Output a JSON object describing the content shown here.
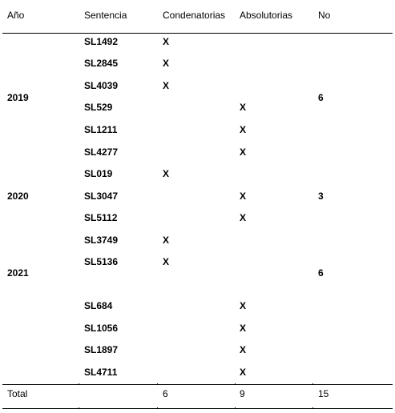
{
  "headers": {
    "year": "Año",
    "sentencia": "Sentencia",
    "condenatorias": "Condenatorias",
    "absolutorias": "Absolutorias",
    "no": "No"
  },
  "rows": [
    {
      "sentencia": "SL1492",
      "condenatoria": "X",
      "absolutoria": ""
    },
    {
      "sentencia": "SL2845",
      "condenatoria": "X",
      "absolutoria": ""
    },
    {
      "sentencia": "SL4039",
      "condenatoria": "X",
      "absolutoria": ""
    },
    {
      "sentencia": "SL529",
      "condenatoria": "",
      "absolutoria": "X"
    },
    {
      "sentencia": "SL1211",
      "condenatoria": "",
      "absolutoria": "X"
    },
    {
      "sentencia": "SL4277",
      "condenatoria": "",
      "absolutoria": "X"
    },
    {
      "sentencia": "SL019",
      "condenatoria": "X",
      "absolutoria": ""
    },
    {
      "sentencia": "SL3047",
      "condenatoria": "",
      "absolutoria": "X"
    },
    {
      "sentencia": "SL5112",
      "condenatoria": "",
      "absolutoria": "X"
    },
    {
      "sentencia": "SL3749",
      "condenatoria": "X",
      "absolutoria": ""
    },
    {
      "sentencia": "SL5136",
      "condenatoria": "X",
      "absolutoria": ""
    },
    {
      "sentencia": "SL684",
      "condenatoria": "",
      "absolutoria": "X"
    },
    {
      "sentencia": "SL1056",
      "condenatoria": "",
      "absolutoria": "X"
    },
    {
      "sentencia": "SL1897",
      "condenatoria": "",
      "absolutoria": "X"
    },
    {
      "sentencia": "SL4711",
      "condenatoria": "",
      "absolutoria": "X"
    }
  ],
  "groups": [
    {
      "year": "2019",
      "no": "6"
    },
    {
      "year": "2020",
      "no": "3"
    },
    {
      "year": "2021",
      "no": "6"
    }
  ],
  "total": {
    "label": "Total",
    "condenatorias": "6",
    "absolutorias": "9",
    "no": "15"
  }
}
